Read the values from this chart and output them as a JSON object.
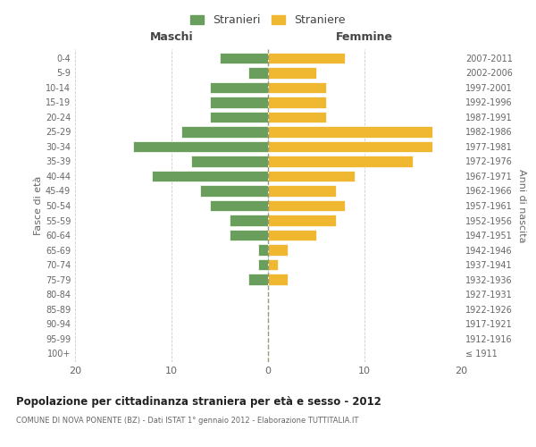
{
  "age_groups": [
    "100+",
    "95-99",
    "90-94",
    "85-89",
    "80-84",
    "75-79",
    "70-74",
    "65-69",
    "60-64",
    "55-59",
    "50-54",
    "45-49",
    "40-44",
    "35-39",
    "30-34",
    "25-29",
    "20-24",
    "15-19",
    "10-14",
    "5-9",
    "0-4"
  ],
  "birth_years": [
    "≤ 1911",
    "1912-1916",
    "1917-1921",
    "1922-1926",
    "1927-1931",
    "1932-1936",
    "1937-1941",
    "1942-1946",
    "1947-1951",
    "1952-1956",
    "1957-1961",
    "1962-1966",
    "1967-1971",
    "1972-1976",
    "1977-1981",
    "1982-1986",
    "1987-1991",
    "1992-1996",
    "1997-2001",
    "2002-2006",
    "2007-2011"
  ],
  "maschi": [
    0,
    0,
    0,
    0,
    0,
    2,
    1,
    1,
    4,
    4,
    6,
    7,
    12,
    8,
    14,
    9,
    6,
    6,
    6,
    2,
    5
  ],
  "femmine": [
    0,
    0,
    0,
    0,
    0,
    2,
    1,
    2,
    5,
    7,
    8,
    7,
    9,
    15,
    17,
    17,
    6,
    6,
    6,
    5,
    8
  ],
  "maschi_color": "#6a9e5c",
  "femmine_color": "#f0b731",
  "title": "Popolazione per cittadinanza straniera per età e sesso - 2012",
  "subtitle": "COMUNE DI NOVA PONENTE (BZ) - Dati ISTAT 1° gennaio 2012 - Elaborazione TUTTITALIA.IT",
  "xlabel_left": "Maschi",
  "xlabel_right": "Femmine",
  "ylabel_left": "Fasce di età",
  "ylabel_right": "Anni di nascita",
  "legend_maschi": "Stranieri",
  "legend_femmine": "Straniere",
  "xlim": 20,
  "background_color": "#ffffff",
  "bar_height": 0.75
}
